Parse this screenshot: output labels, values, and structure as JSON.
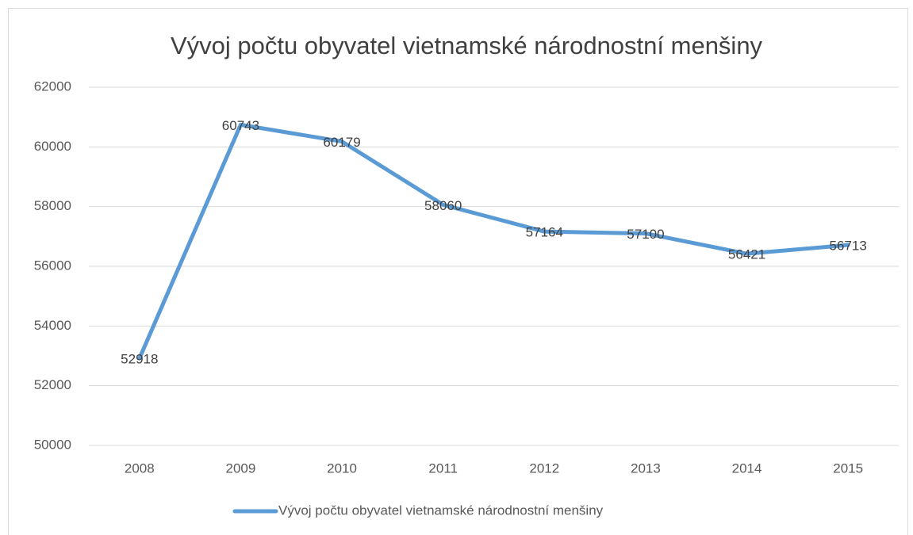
{
  "chart_data": {
    "type": "line",
    "title": "Vývoj počtu obyvatel vietnamské národnostní menšiny",
    "categories": [
      "2008",
      "2009",
      "2010",
      "2011",
      "2012",
      "2013",
      "2014",
      "2015"
    ],
    "series": [
      {
        "name": "Vývoj počtu obyvatel vietnamské národnostní menšiny",
        "color": "#5b9bd5",
        "values": [
          52918,
          60743,
          60179,
          58060,
          57164,
          57100,
          56421,
          56713
        ]
      }
    ],
    "ylim": [
      50000,
      62000
    ],
    "yticks": [
      50000,
      52000,
      54000,
      56000,
      58000,
      60000,
      62000
    ],
    "grid": true,
    "legend": "bottom"
  }
}
